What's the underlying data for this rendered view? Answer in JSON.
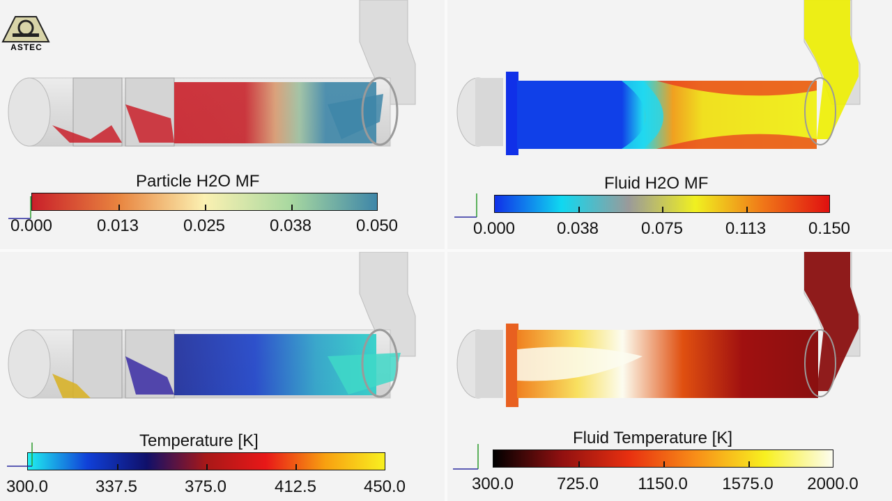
{
  "logo": {
    "text": "ASTEC"
  },
  "panels": {
    "top_left": {
      "title": "Particle H2O MF",
      "ticks": [
        "0.000",
        "0.013",
        "0.025",
        "0.038",
        "0.050"
      ],
      "colormap": [
        "#c9202a",
        "#e8843f",
        "#fbf1b2",
        "#a8d8a0",
        "#3e86a8"
      ]
    },
    "top_right": {
      "title": "Fluid H2O MF",
      "ticks": [
        "0.000",
        "0.038",
        "0.075",
        "0.113",
        "0.150"
      ],
      "colormap": [
        "#1030e8",
        "#10d8f0",
        "#9a9a9a",
        "#f0f020",
        "#f07818",
        "#e01010"
      ]
    },
    "bottom_left": {
      "title": "Temperature [K]",
      "ticks": [
        "300.0",
        "337.5",
        "375.0",
        "412.5",
        "450.0"
      ],
      "colormap": [
        "#20f0f0",
        "#1040d8",
        "#10106a",
        "#a81818",
        "#e81818",
        "#f8a010",
        "#f8f020"
      ]
    },
    "bottom_right": {
      "title": "Fluid Temperature [K]",
      "ticks": [
        "300.0",
        "725.0",
        "1150.0",
        "1575.0",
        "2000.0"
      ],
      "colormap": [
        "#000000",
        "#901010",
        "#e83010",
        "#f89018",
        "#f8f020",
        "#fcfcf0"
      ]
    }
  }
}
